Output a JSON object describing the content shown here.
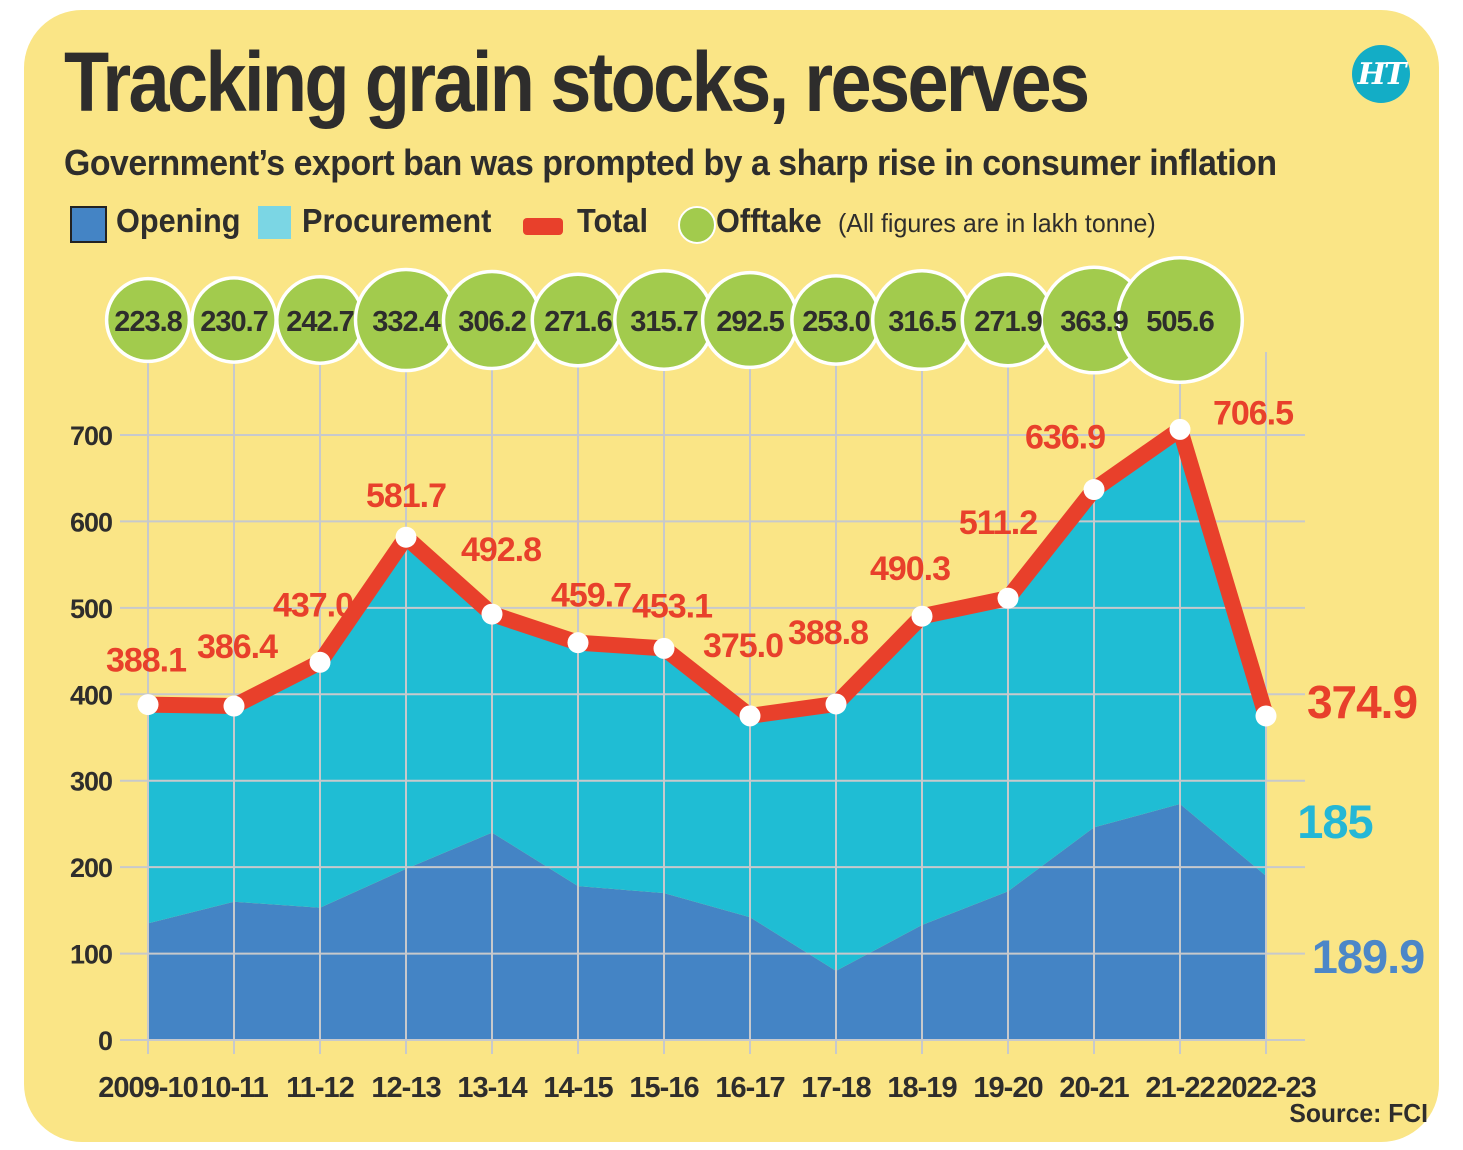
{
  "header": {
    "title": "Tracking grain stocks, reserves",
    "subtitle": "Government’s export ban was prompted by a sharp rise in consumer inflation",
    "logo_text": "HT"
  },
  "legend": {
    "items": [
      {
        "label": "Opening",
        "swatch": "square",
        "color": "#4484c5"
      },
      {
        "label": "Procurement",
        "swatch": "square",
        "color": "#7bd6e4"
      },
      {
        "label": "Total",
        "swatch": "dash",
        "color": "#e8402b"
      },
      {
        "label": "Offtake",
        "swatch": "circle",
        "color": "#a2cb4d"
      }
    ],
    "note": "(All figures are in lakh tonne)"
  },
  "source": "Source: FCI",
  "colors": {
    "card_background": "#fae586",
    "opening_area": "#4484c5",
    "procurement_area": "#1fbdd4",
    "total_line": "#e8402b",
    "offtake_bubble": "#a2cb4d",
    "gridline": "#c7c9cc",
    "text": "#2e2d2c",
    "logo_circle": "#13adc6",
    "procurement_end_label": "#24b7d6",
    "opening_end_label": "#4c87c8"
  },
  "chart_data": {
    "type": "area",
    "unit": "lakh tonne",
    "grid": true,
    "categories": [
      "2009-10",
      "10-11",
      "11-12",
      "12-13",
      "13-14",
      "14-15",
      "15-16",
      "16-17",
      "17-18",
      "18-19",
      "19-20",
      "20-21",
      "21-22",
      "2022-23"
    ],
    "y_axis": {
      "min": 0,
      "max": 700,
      "ticks": [
        0,
        100,
        200,
        300,
        400,
        500,
        600,
        700
      ]
    },
    "series": [
      {
        "name": "Opening",
        "type": "area-stacked",
        "color": "#4484c5",
        "values": [
          135,
          160,
          153,
          198,
          240,
          178,
          170,
          142,
          80,
          133,
          172,
          246,
          273,
          189.9
        ]
      },
      {
        "name": "Procurement",
        "type": "area-stacked",
        "color": "#1fbdd4",
        "values": [
          253.1,
          226.4,
          284.0,
          383.7,
          252.8,
          281.7,
          283.1,
          233.0,
          308.8,
          357.3,
          339.2,
          390.9,
          433.5,
          185.0
        ]
      },
      {
        "name": "Total",
        "type": "line",
        "color": "#e8402b",
        "values": [
          388.1,
          386.4,
          437.0,
          581.7,
          492.8,
          459.7,
          453.1,
          375.0,
          388.8,
          490.3,
          511.2,
          636.9,
          706.5,
          374.9
        ],
        "labels": [
          "388.1",
          "386.4",
          "437.0",
          "581.7",
          "492.8",
          "459.7",
          "453.1",
          "375.0",
          "388.8",
          "490.3",
          "511.2",
          "636.9",
          "706.5",
          "374.9"
        ]
      },
      {
        "name": "Offtake",
        "type": "bubble",
        "color": "#a2cb4d",
        "values": [
          223.8,
          230.7,
          242.7,
          332.4,
          306.2,
          271.6,
          315.7,
          292.5,
          253.0,
          316.5,
          271.9,
          363.9,
          505.6
        ],
        "labels": [
          "223.8",
          "230.7",
          "242.7",
          "332.4",
          "306.2",
          "271.6",
          "315.7",
          "292.5",
          "253.0",
          "316.5",
          "271.9",
          "363.9",
          "505.6"
        ]
      }
    ],
    "end_labels": {
      "procurement": "185",
      "opening": "189.9"
    }
  }
}
